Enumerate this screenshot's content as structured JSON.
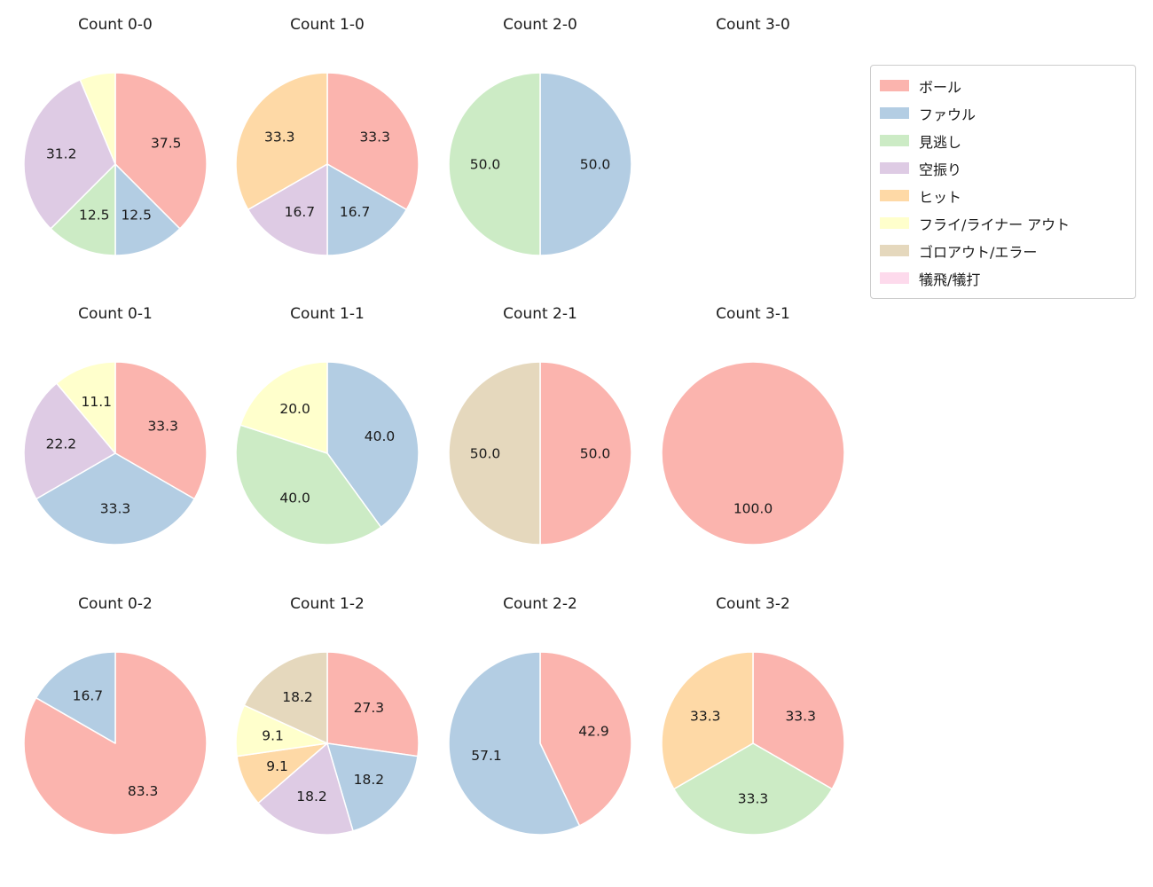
{
  "figure": {
    "background": "#ffffff",
    "text_color": "#1a1a1a"
  },
  "legend": {
    "position": "top-right",
    "items": [
      {
        "label": "ボール",
        "color": "#fbb4ae"
      },
      {
        "label": "ファウル",
        "color": "#b3cde3"
      },
      {
        "label": "見逃し",
        "color": "#ccebc5"
      },
      {
        "label": "空振り",
        "color": "#decbe4"
      },
      {
        "label": "ヒット",
        "color": "#fed9a6"
      },
      {
        "label": "フライ/ライナー アウト",
        "color": "#ffffcc"
      },
      {
        "label": "ゴロアウト/エラー",
        "color": "#e5d8bd"
      },
      {
        "label": "犠飛/犠打",
        "color": "#fddaec"
      }
    ]
  },
  "chart_data": [
    {
      "type": "pie",
      "title": "Count 0-0",
      "start_angle": "12-o-clock",
      "direction": "clockwise",
      "slices": [
        {
          "label": "ボール",
          "value": 37.5,
          "text": "37.5"
        },
        {
          "label": "ファウル",
          "value": 12.5,
          "text": "12.5"
        },
        {
          "label": "見逃し",
          "value": 12.5,
          "text": "12.5"
        },
        {
          "label": "空振り",
          "value": 31.2,
          "text": "31.2"
        },
        {
          "label": "フライ/ライナー アウト",
          "value": 6.3,
          "text": ""
        }
      ]
    },
    {
      "type": "pie",
      "title": "Count 1-0",
      "start_angle": "12-o-clock",
      "direction": "clockwise",
      "slices": [
        {
          "label": "ボール",
          "value": 33.3,
          "text": "33.3"
        },
        {
          "label": "ファウル",
          "value": 16.7,
          "text": "16.7"
        },
        {
          "label": "空振り",
          "value": 16.7,
          "text": "16.7"
        },
        {
          "label": "ヒット",
          "value": 33.3,
          "text": "33.3"
        }
      ]
    },
    {
      "type": "pie",
      "title": "Count 2-0",
      "start_angle": "12-o-clock",
      "direction": "clockwise",
      "slices": [
        {
          "label": "ファウル",
          "value": 50.0,
          "text": "50.0"
        },
        {
          "label": "見逃し",
          "value": 50.0,
          "text": "50.0"
        }
      ]
    },
    {
      "type": "pie",
      "title": "Count 3-0",
      "start_angle": "12-o-clock",
      "direction": "clockwise",
      "slices": []
    },
    {
      "type": "pie",
      "title": "Count 0-1",
      "start_angle": "12-o-clock",
      "direction": "clockwise",
      "slices": [
        {
          "label": "ボール",
          "value": 33.3,
          "text": "33.3"
        },
        {
          "label": "ファウル",
          "value": 33.3,
          "text": "33.3"
        },
        {
          "label": "空振り",
          "value": 22.2,
          "text": "22.2"
        },
        {
          "label": "フライ/ライナー アウト",
          "value": 11.1,
          "text": "11.1"
        }
      ]
    },
    {
      "type": "pie",
      "title": "Count 1-1",
      "start_angle": "12-o-clock",
      "direction": "clockwise",
      "slices": [
        {
          "label": "ファウル",
          "value": 40.0,
          "text": "40.0"
        },
        {
          "label": "見逃し",
          "value": 40.0,
          "text": "40.0"
        },
        {
          "label": "フライ/ライナー アウト",
          "value": 20.0,
          "text": "20.0"
        }
      ]
    },
    {
      "type": "pie",
      "title": "Count 2-1",
      "start_angle": "12-o-clock",
      "direction": "clockwise",
      "slices": [
        {
          "label": "ボール",
          "value": 50.0,
          "text": "50.0"
        },
        {
          "label": "ゴロアウト/エラー",
          "value": 50.0,
          "text": "50.0"
        }
      ]
    },
    {
      "type": "pie",
      "title": "Count 3-1",
      "start_angle": "12-o-clock",
      "direction": "clockwise",
      "slices": [
        {
          "label": "ボール",
          "value": 100.0,
          "text": "100.0"
        }
      ]
    },
    {
      "type": "pie",
      "title": "Count 0-2",
      "start_angle": "12-o-clock",
      "direction": "clockwise",
      "slices": [
        {
          "label": "ボール",
          "value": 83.3,
          "text": "83.3"
        },
        {
          "label": "ファウル",
          "value": 16.7,
          "text": "16.7"
        }
      ]
    },
    {
      "type": "pie",
      "title": "Count 1-2",
      "start_angle": "12-o-clock",
      "direction": "clockwise",
      "slices": [
        {
          "label": "ボール",
          "value": 27.3,
          "text": "27.3"
        },
        {
          "label": "ファウル",
          "value": 18.2,
          "text": "18.2"
        },
        {
          "label": "空振り",
          "value": 18.2,
          "text": "18.2"
        },
        {
          "label": "ヒット",
          "value": 9.1,
          "text": "9.1"
        },
        {
          "label": "フライ/ライナー アウト",
          "value": 9.1,
          "text": "9.1"
        },
        {
          "label": "ゴロアウト/エラー",
          "value": 18.2,
          "text": "18.2"
        }
      ]
    },
    {
      "type": "pie",
      "title": "Count 2-2",
      "start_angle": "12-o-clock",
      "direction": "clockwise",
      "slices": [
        {
          "label": "ボール",
          "value": 42.9,
          "text": "42.9"
        },
        {
          "label": "ファウル",
          "value": 57.1,
          "text": "57.1"
        }
      ]
    },
    {
      "type": "pie",
      "title": "Count 3-2",
      "start_angle": "12-o-clock",
      "direction": "clockwise",
      "slices": [
        {
          "label": "ボール",
          "value": 33.3,
          "text": "33.3"
        },
        {
          "label": "見逃し",
          "value": 33.3,
          "text": "33.3"
        },
        {
          "label": "ヒット",
          "value": 33.3,
          "text": "33.3"
        }
      ]
    }
  ]
}
